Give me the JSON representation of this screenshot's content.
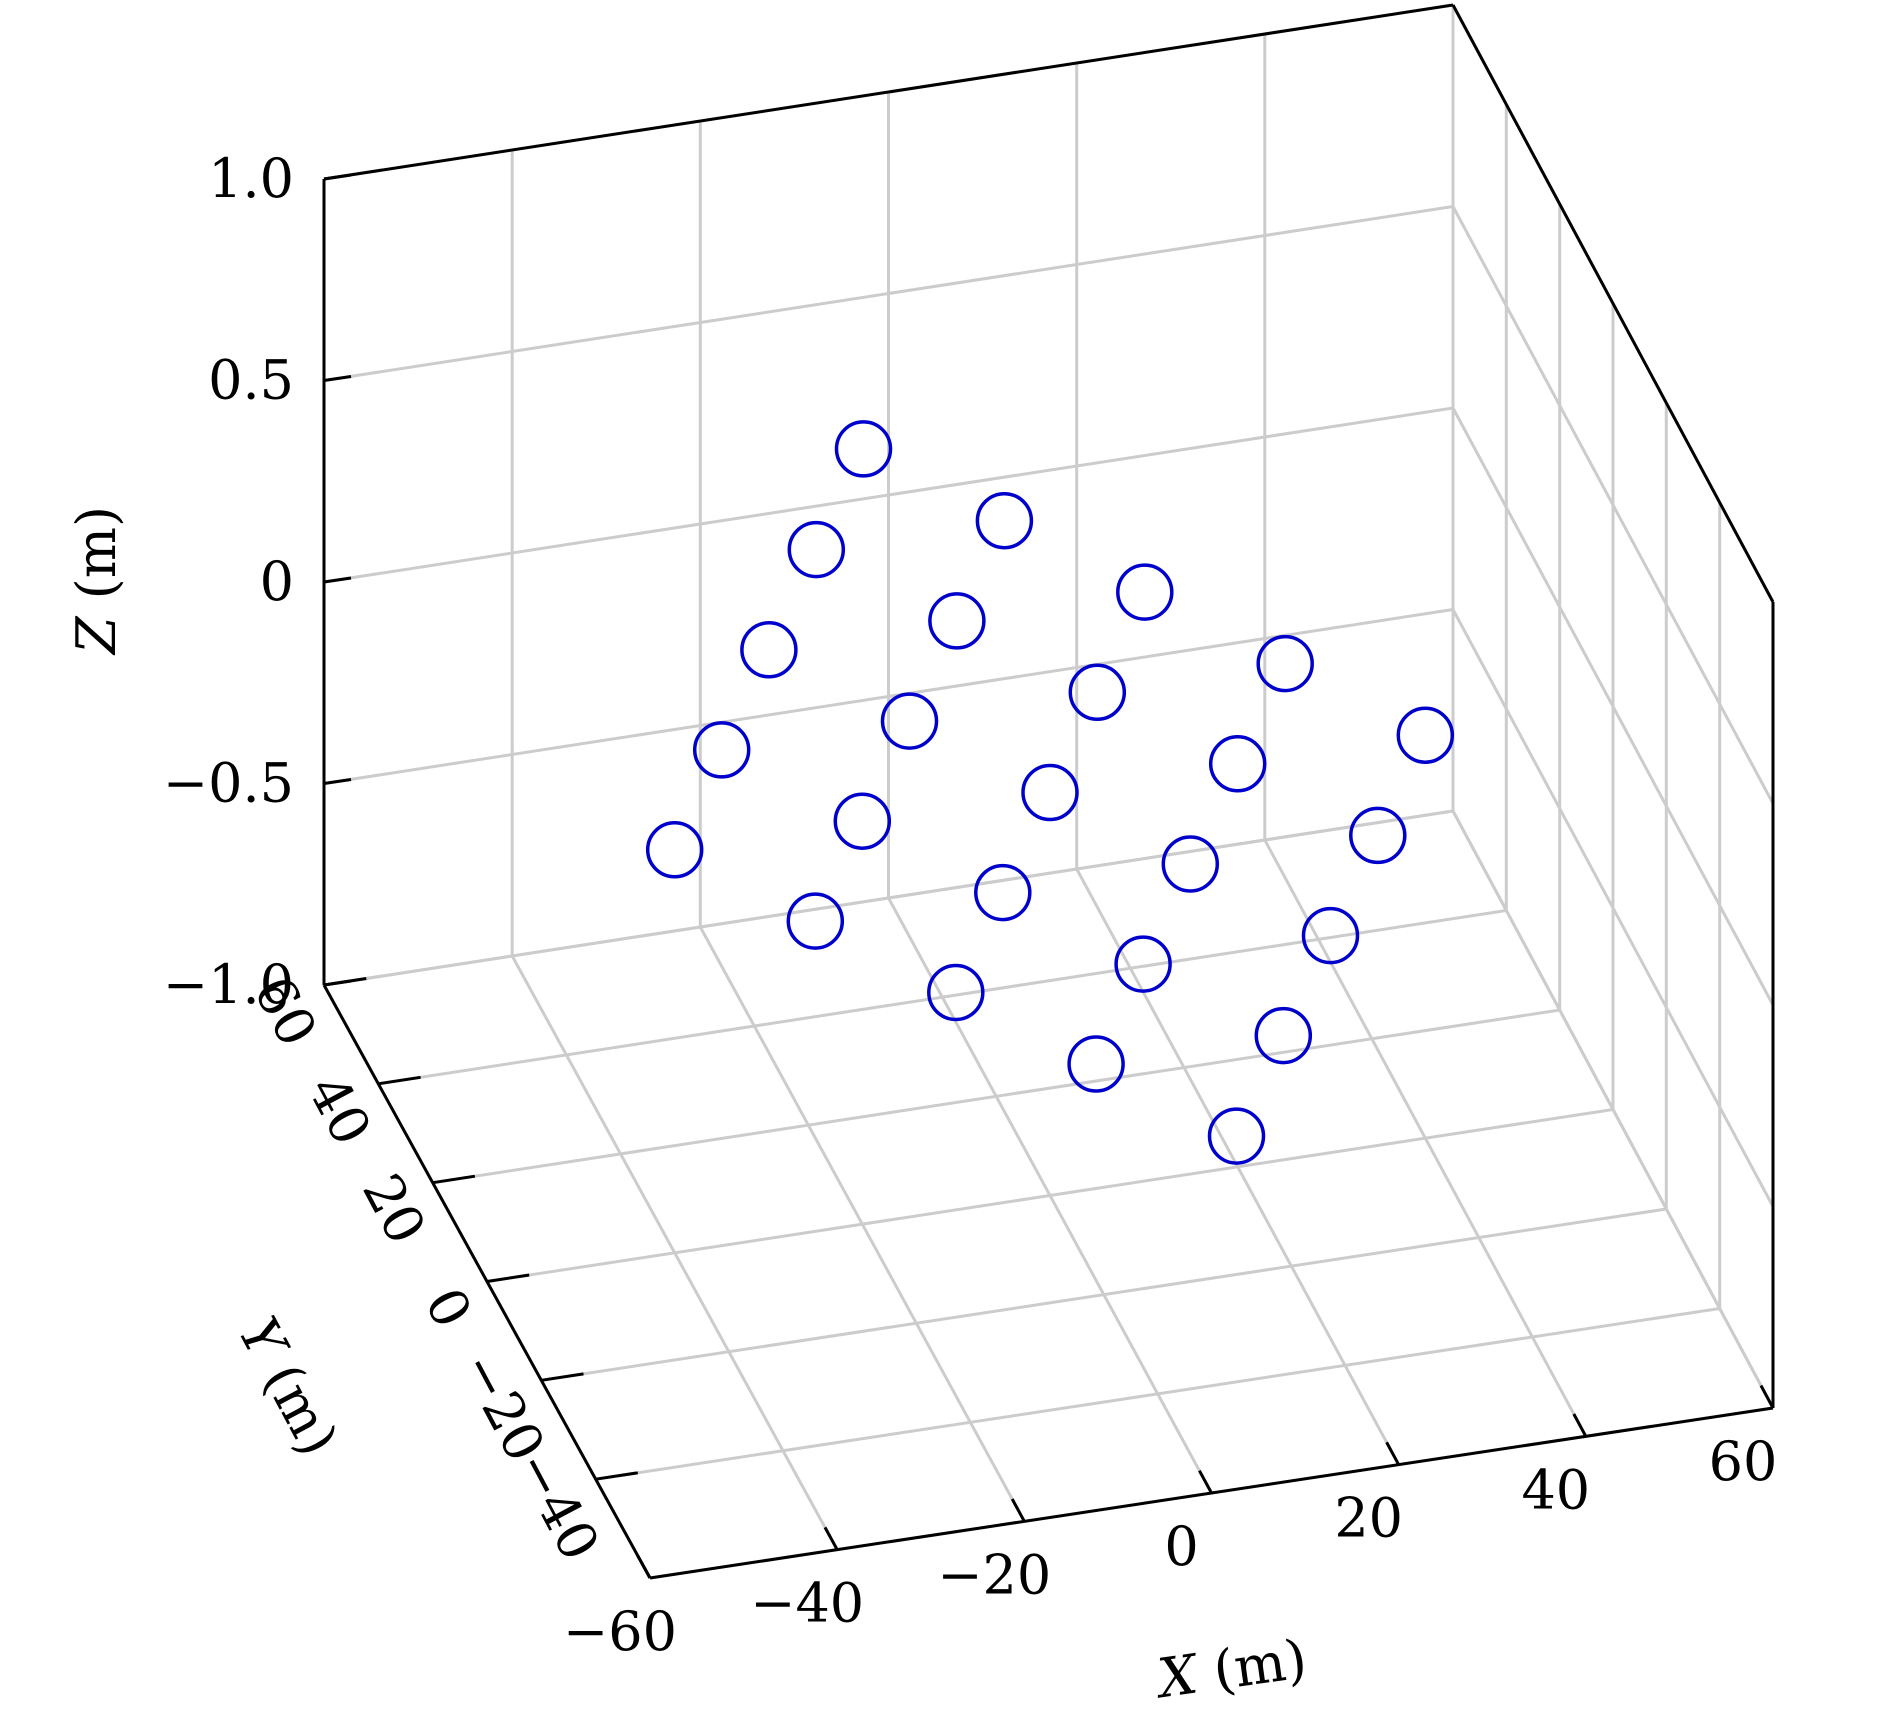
{
  "chart_data": {
    "type": "scatter",
    "title": "",
    "projection": "3d",
    "grid": true,
    "marker": "open-circle",
    "marker_color": "#0000cc",
    "axes": {
      "x": {
        "label_var": "X",
        "label_unit": "(m)",
        "lim": [
          -60,
          60
        ],
        "ticks": [
          -60,
          -40,
          -20,
          0,
          20,
          40,
          60
        ],
        "tick_labels": [
          "−60",
          "−40",
          "−20",
          "0",
          "20",
          "40",
          "60"
        ]
      },
      "y": {
        "label_var": "Y",
        "label_unit": "(m)",
        "lim": [
          -60,
          60
        ],
        "ticks": [
          -40,
          -20,
          0,
          20,
          40,
          60
        ],
        "tick_labels": [
          "−40",
          "−20",
          "0",
          "20",
          "40",
          "60"
        ]
      },
      "z": {
        "label_var": "Z",
        "label_unit": "(m)",
        "lim": [
          -1,
          1
        ],
        "ticks": [
          -1,
          -0.5,
          0,
          0.5,
          1
        ],
        "tick_labels": [
          "−1.0",
          "−0.5",
          "0",
          "0.5",
          "1.0"
        ]
      }
    },
    "points": [
      {
        "x": -40,
        "y": 0,
        "z": 0
      },
      {
        "x": -30,
        "y": -17.3,
        "z": 0
      },
      {
        "x": -30,
        "y": 17.3,
        "z": 0
      },
      {
        "x": -20,
        "y": -34.6,
        "z": 0
      },
      {
        "x": -20,
        "y": 0,
        "z": 0
      },
      {
        "x": -20,
        "y": 34.6,
        "z": 0
      },
      {
        "x": -10,
        "y": -17.3,
        "z": 0
      },
      {
        "x": -10,
        "y": 17.3,
        "z": 0
      },
      {
        "x": -10,
        "y": -51.9,
        "z": 0
      },
      {
        "x": -10,
        "y": 51.9,
        "z": 0
      },
      {
        "x": 0,
        "y": -34.6,
        "z": 0
      },
      {
        "x": 0,
        "y": 0,
        "z": 0
      },
      {
        "x": 0,
        "y": 34.6,
        "z": 0
      },
      {
        "x": 0,
        "y": -69.3,
        "z": 0
      },
      {
        "x": 0,
        "y": 69.3,
        "z": 0
      },
      {
        "x": 10,
        "y": -17.3,
        "z": 0
      },
      {
        "x": 10,
        "y": 17.3,
        "z": 0
      },
      {
        "x": 10,
        "y": -51.9,
        "z": 0
      },
      {
        "x": 10,
        "y": 51.9,
        "z": 0
      },
      {
        "x": 20,
        "y": -34.6,
        "z": 0
      },
      {
        "x": 20,
        "y": 0,
        "z": 0
      },
      {
        "x": 20,
        "y": 34.6,
        "z": 0
      },
      {
        "x": 30,
        "y": -17.3,
        "z": 0
      },
      {
        "x": 30,
        "y": 17.3,
        "z": 0
      },
      {
        "x": 40,
        "y": 0,
        "z": 0
      }
    ]
  }
}
